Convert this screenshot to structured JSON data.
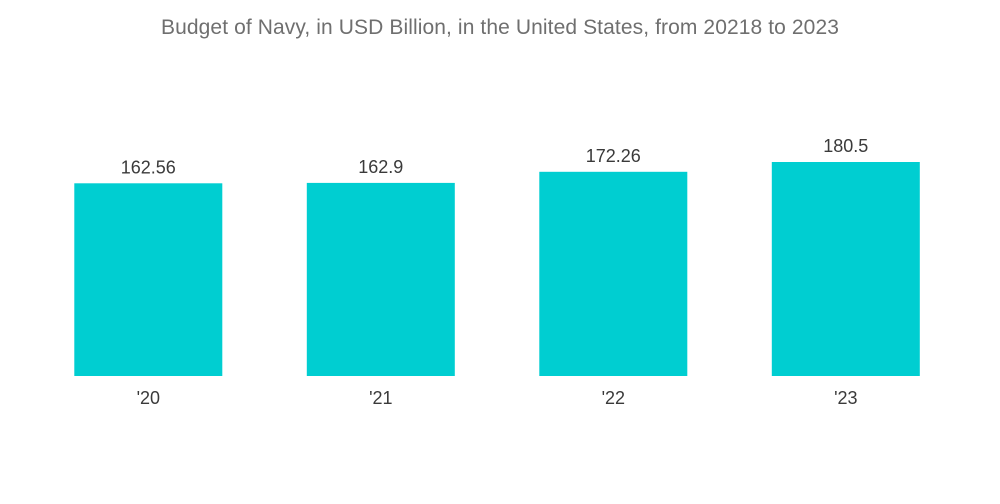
{
  "chart_data": {
    "type": "bar",
    "title": "Budget of Navy, in USD Billion, in the United States,  from 20218 to 2023",
    "categories": [
      "'20",
      "'21",
      "'22",
      "'23"
    ],
    "values": [
      162.56,
      162.9,
      172.26,
      180.5
    ],
    "value_labels": [
      "162.56",
      "162.9",
      "172.26",
      "180.5"
    ],
    "xlabel": "",
    "ylabel": "",
    "ylim": [
      0,
      180.5
    ],
    "grid": false,
    "legend": "none",
    "bar_color": "#00ced1"
  }
}
